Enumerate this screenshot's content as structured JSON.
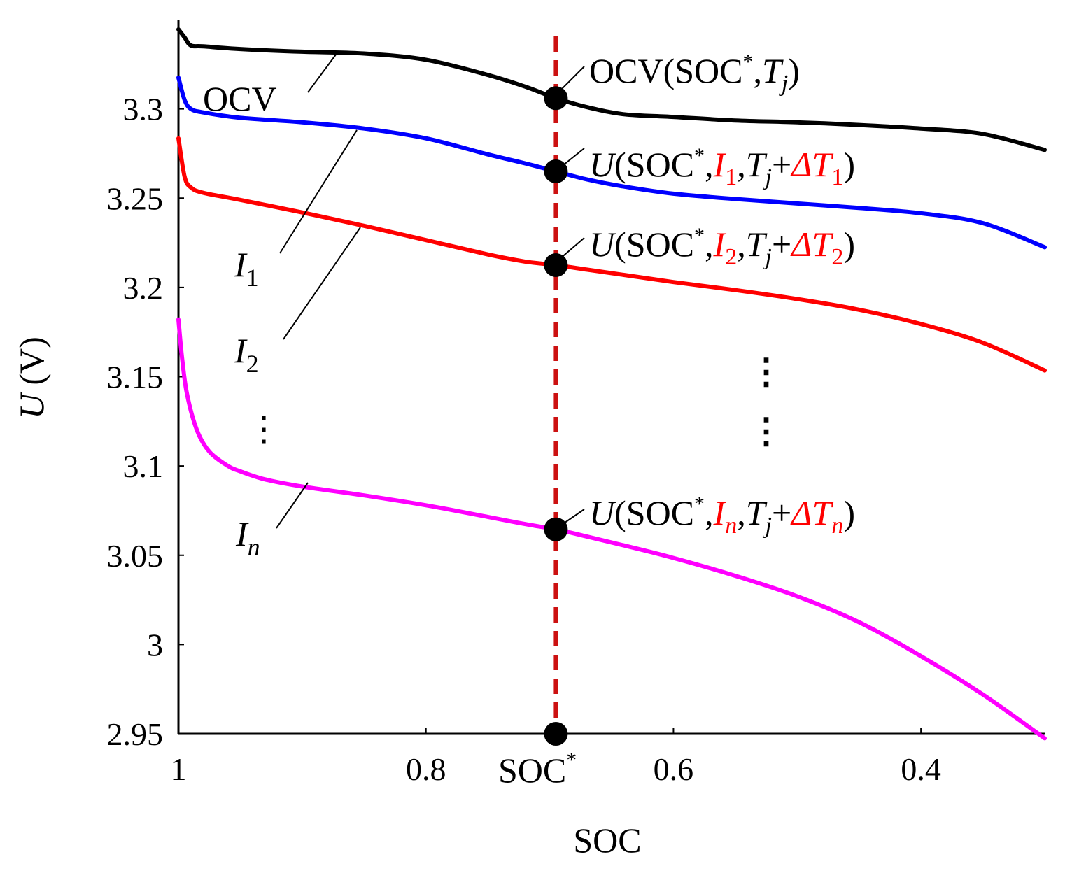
{
  "chart_data": {
    "type": "line",
    "title": "",
    "xlabel": "SOC",
    "ylabel_var": "U",
    "ylabel_unit": "(V)",
    "xlim": [
      1.0,
      0.3
    ],
    "ylim": [
      2.95,
      3.35
    ],
    "x_ticks": [
      {
        "value": 1.0,
        "label": "1"
      },
      {
        "value": 0.8,
        "label": "0.8"
      },
      {
        "value": 0.6,
        "label": "0.6"
      },
      {
        "value": 0.4,
        "label": "0.4"
      }
    ],
    "y_ticks": [
      {
        "value": 3.3,
        "label": "3.3"
      },
      {
        "value": 3.25,
        "label": "3.25"
      },
      {
        "value": 3.2,
        "label": "3.2"
      },
      {
        "value": 3.15,
        "label": "3.15"
      },
      {
        "value": 3.1,
        "label": "3.1"
      },
      {
        "value": 3.05,
        "label": "3.05"
      },
      {
        "value": 3.0,
        "label": "3"
      },
      {
        "value": 2.95,
        "label": "2.95"
      }
    ],
    "soc_star": 0.695,
    "soc_star_label_base": "SOC",
    "soc_star_label_sup": "*",
    "marker_color": "#cc1111",
    "series": [
      {
        "name": "OCV",
        "color": "#000000",
        "x": [
          1.0,
          0.995,
          0.99,
          0.98,
          0.95,
          0.9,
          0.85,
          0.8,
          0.75,
          0.72,
          0.695,
          0.67,
          0.64,
          0.6,
          0.55,
          0.5,
          0.45,
          0.4,
          0.35,
          0.3
        ],
        "y": [
          3.3445,
          3.34,
          3.3355,
          3.335,
          3.3335,
          3.332,
          3.331,
          3.3275,
          3.319,
          3.3125,
          3.306,
          3.301,
          3.297,
          3.2955,
          3.2935,
          3.2925,
          3.291,
          3.289,
          3.286,
          3.277
        ]
      },
      {
        "name": "I1",
        "color": "#0000ff",
        "x": [
          1.0,
          0.995,
          0.99,
          0.98,
          0.95,
          0.9,
          0.85,
          0.8,
          0.75,
          0.72,
          0.695,
          0.67,
          0.64,
          0.6,
          0.55,
          0.5,
          0.45,
          0.4,
          0.35,
          0.3
        ],
        "y": [
          3.3175,
          3.305,
          3.3,
          3.298,
          3.295,
          3.2925,
          3.289,
          3.2835,
          3.2745,
          3.2695,
          3.265,
          3.2605,
          3.2565,
          3.2525,
          3.2495,
          3.247,
          3.2445,
          3.2415,
          3.236,
          3.2225
        ]
      },
      {
        "name": "I2",
        "color": "#ff0000",
        "x": [
          1.0,
          0.995,
          0.99,
          0.98,
          0.95,
          0.9,
          0.85,
          0.8,
          0.75,
          0.72,
          0.695,
          0.67,
          0.64,
          0.6,
          0.55,
          0.5,
          0.45,
          0.4,
          0.35,
          0.3
        ],
        "y": [
          3.2835,
          3.262,
          3.256,
          3.253,
          3.249,
          3.242,
          3.2345,
          3.2265,
          3.2185,
          3.2145,
          3.2125,
          3.21,
          3.207,
          3.203,
          3.1985,
          3.1935,
          3.1875,
          3.1795,
          3.169,
          3.1535
        ]
      },
      {
        "name": "In",
        "color": "#ff00ff",
        "x": [
          1.0,
          0.997,
          0.993,
          0.985,
          0.975,
          0.96,
          0.95,
          0.93,
          0.9,
          0.85,
          0.8,
          0.75,
          0.72,
          0.695,
          0.67,
          0.64,
          0.6,
          0.55,
          0.5,
          0.45,
          0.4,
          0.35,
          0.3
        ],
        "y": [
          3.182,
          3.16,
          3.14,
          3.12,
          3.108,
          3.1,
          3.097,
          3.0925,
          3.0885,
          3.0835,
          3.078,
          3.0715,
          3.0675,
          3.0645,
          3.0605,
          3.0555,
          3.0485,
          3.0385,
          3.027,
          3.0125,
          2.9935,
          2.972,
          2.9475
        ]
      }
    ],
    "series_labels": [
      {
        "var": "I",
        "sub": "1"
      },
      {
        "var": "I",
        "sub": "2"
      },
      {
        "var": "I",
        "sub": "n"
      }
    ],
    "ocv_label": "OCV",
    "annotations": {
      "ocv": {
        "prefix": "OCV(SOC",
        "sup": "*",
        "comma": ",",
        "T": "T",
        "Tsub": "j",
        "close": ")"
      },
      "u1": {
        "U": "U",
        "open": "(SOC",
        "sup": "*",
        "comma": ",",
        "I": "I",
        "Isub": "1",
        "comma2": ",",
        "T": "T",
        "Tsub": "j",
        "plus": "+",
        "dT": "ΔT",
        "dTsub": "1",
        "close": ")"
      },
      "u2": {
        "U": "U",
        "open": "(SOC",
        "sup": "*",
        "comma": ",",
        "I": "I",
        "Isub": "2",
        "comma2": ",",
        "T": "T",
        "Tsub": "j",
        "plus": "+",
        "dT": "ΔT",
        "dTsub": "2",
        "close": ")"
      },
      "un": {
        "U": "U",
        "open": "(SOC",
        "sup": "*",
        "comma": ",",
        "I": "I",
        "Isub": "n",
        "comma2": ",",
        "T": "T",
        "Tsub": "j",
        "plus": "+",
        "dT": "ΔT",
        "dTsub": "n",
        "close": ")"
      }
    },
    "ellipsis_left": "⋮",
    "ellipsis_right": "⋮"
  }
}
